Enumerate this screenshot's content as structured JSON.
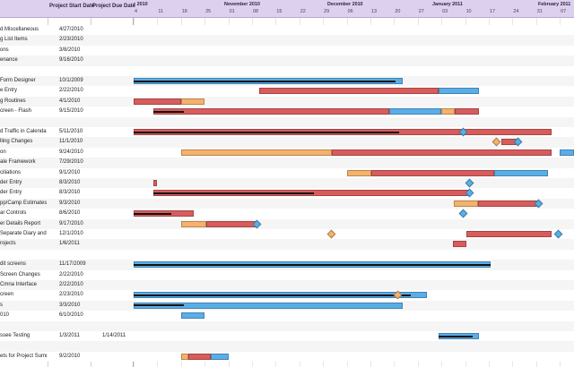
{
  "header": {
    "start_label": "Project Start Date",
    "due_label": "Project Due Date",
    "months": [
      "r 2010",
      "November 2010",
      "December 2010",
      "January 2011",
      "February 2011"
    ],
    "ticks": [
      "4",
      "11",
      "18",
      "25",
      "01",
      "08",
      "15",
      "22",
      "29",
      "06",
      "13",
      "20",
      "27",
      "03",
      "10",
      "17",
      "24",
      "31",
      "07"
    ]
  },
  "rows": [
    {
      "name": "d Miscellaneous",
      "start": "4/27/2010",
      "due": "",
      "bars": []
    },
    {
      "name": "g List Items",
      "start": "2/23/2010",
      "due": "",
      "bars": []
    },
    {
      "name": "ons",
      "start": "3/8/2010",
      "due": "",
      "bars": []
    },
    {
      "name": "enance",
      "start": "9/16/2010",
      "due": "",
      "bars": []
    },
    {
      "name": "",
      "start": "",
      "due": "",
      "bars": []
    },
    {
      "name": "Form Designer",
      "start": "10/1/2009",
      "due": "",
      "bars": [
        {
          "t": "blue",
          "a": 0,
          "b": 0.61
        }
      ],
      "line": [
        0,
        0.595
      ]
    },
    {
      "name": "e Entry",
      "start": "2/22/2010",
      "due": "",
      "bars": [
        {
          "t": "red",
          "a": 0.285,
          "b": 0.693
        },
        {
          "t": "blue",
          "a": 0.693,
          "b": 0.785
        }
      ]
    },
    {
      "name": "g Routines",
      "start": "4/1/2010",
      "due": "",
      "bars": [
        {
          "t": "red",
          "a": 0,
          "b": 0.108
        },
        {
          "t": "orange",
          "a": 0.108,
          "b": 0.16
        }
      ]
    },
    {
      "name": "creen - Flash",
      "start": "9/15/2010",
      "due": "",
      "bars": [
        {
          "t": "red",
          "a": 0.045,
          "b": 0.581
        },
        {
          "t": "blue",
          "a": 0.581,
          "b": 0.698
        },
        {
          "t": "orange",
          "a": 0.698,
          "b": 0.73
        },
        {
          "t": "red",
          "a": 0.73,
          "b": 0.785
        }
      ],
      "line": [
        0.045,
        0.115
      ]
    },
    {
      "name": "",
      "start": "",
      "due": "",
      "bars": []
    },
    {
      "name": "d Traffic in Calendar a",
      "start": "5/11/2010",
      "due": "",
      "bars": [
        {
          "t": "red",
          "a": 0,
          "b": 0.95
        }
      ],
      "line": [
        0,
        0.603
      ],
      "diamonds": [
        {
          "c": "blue",
          "p": 0.748
        }
      ]
    },
    {
      "name": "lling Changes",
      "start": "11/1/2010",
      "due": "",
      "bars": [
        {
          "t": "red",
          "a": 0.835,
          "b": 0.87
        }
      ],
      "diamonds": [
        {
          "c": "orange",
          "p": 0.824
        },
        {
          "c": "blue",
          "p": 0.873
        }
      ]
    },
    {
      "name": "on",
      "start": "9/24/2010",
      "due": "",
      "bars": [
        {
          "t": "orange",
          "a": 0.108,
          "b": 0.45
        },
        {
          "t": "red",
          "a": 0.45,
          "b": 0.95
        },
        {
          "t": "blue",
          "a": 0.968,
          "b": 1.0
        }
      ]
    },
    {
      "name": "ale Framework",
      "start": "7/29/2010",
      "due": "",
      "bars": []
    },
    {
      "name": "ciliations",
      "start": "9/1/2010",
      "due": "",
      "bars": [
        {
          "t": "orange",
          "a": 0.485,
          "b": 0.54
        },
        {
          "t": "red",
          "a": 0.54,
          "b": 0.818
        },
        {
          "t": "blue",
          "a": 0.818,
          "b": 0.94
        }
      ]
    },
    {
      "name": "der Entry",
      "start": "8/3/2010",
      "due": "",
      "bars": [
        {
          "t": "red",
          "a": 0.045,
          "b": 0.052
        }
      ],
      "diamonds": [
        {
          "c": "blue",
          "p": 0.762
        }
      ]
    },
    {
      "name": "der Entry",
      "start": "8/3/2010",
      "due": "",
      "bars": [
        {
          "t": "red",
          "a": 0.045,
          "b": 0.762
        }
      ],
      "line": [
        0.045,
        0.41
      ],
      "diamonds": [
        {
          "c": "blue",
          "p": 0.762
        }
      ]
    },
    {
      "name": "pp/Camp Estimates",
      "start": "9/3/2010",
      "due": "",
      "bars": [
        {
          "t": "orange",
          "a": 0.727,
          "b": 0.782
        },
        {
          "t": "red",
          "a": 0.782,
          "b": 0.92
        }
      ],
      "diamonds": [
        {
          "c": "blue",
          "p": 0.92
        }
      ]
    },
    {
      "name": "ar Controls",
      "start": "8/6/2010",
      "due": "",
      "bars": [
        {
          "t": "red",
          "a": 0,
          "b": 0.137
        }
      ],
      "line": [
        0,
        0.085
      ],
      "diamonds": [
        {
          "c": "blue",
          "p": 0.748
        }
      ]
    },
    {
      "name": "er Details Report",
      "start": "9/17/2010",
      "due": "",
      "bars": [
        {
          "t": "orange",
          "a": 0.108,
          "b": 0.165
        },
        {
          "t": "red",
          "a": 0.165,
          "b": 0.28
        }
      ],
      "diamonds": [
        {
          "c": "blue",
          "p": 0.28
        }
      ]
    },
    {
      "name": "Separate Diary and To",
      "start": "12/1/2010",
      "due": "",
      "bars": [
        {
          "t": "red",
          "a": 0.755,
          "b": 0.95
        }
      ],
      "diamonds": [
        {
          "c": "orange",
          "p": 0.45
        },
        {
          "c": "blue",
          "p": 0.965
        }
      ]
    },
    {
      "name": "rojects",
      "start": "1/6/2011",
      "due": "",
      "bars": [
        {
          "t": "red",
          "a": 0.725,
          "b": 0.755
        }
      ]
    },
    {
      "name": "",
      "start": "",
      "due": "",
      "bars": []
    },
    {
      "name": "dit screens",
      "start": "11/17/2009",
      "due": "",
      "bars": [
        {
          "t": "blue",
          "a": 0,
          "b": 0.81
        }
      ],
      "line": [
        0,
        0.81
      ]
    },
    {
      "name": "Screen Changes",
      "start": "2/22/2010",
      "due": "",
      "bars": []
    },
    {
      "name": "Cmna Interface",
      "start": "2/22/2010",
      "due": "",
      "bars": []
    },
    {
      "name": "creen",
      "start": "2/23/2010",
      "due": "",
      "bars": [
        {
          "t": "blue",
          "a": 0,
          "b": 0.665
        }
      ],
      "line": [
        0,
        0.63
      ],
      "diamonds": [
        {
          "c": "orange",
          "p": 0.6
        }
      ]
    },
    {
      "name": "s",
      "start": "3/3/2010",
      "due": "",
      "bars": [
        {
          "t": "blue",
          "a": 0,
          "b": 0.61
        }
      ],
      "line": [
        0,
        0.115
      ]
    },
    {
      "name": "010",
      "start": "6/10/2010",
      "due": "",
      "bars": [
        {
          "t": "blue",
          "a": 0.108,
          "b": 0.16
        }
      ]
    },
    {
      "name": "",
      "start": "",
      "due": "",
      "bars": []
    },
    {
      "name": "ssee Testing",
      "start": "1/3/2011",
      "due": "1/14/2011",
      "bars": [
        {
          "t": "blue",
          "a": 0.693,
          "b": 0.785
        }
      ],
      "line": [
        0.693,
        0.77
      ]
    },
    {
      "name": "",
      "start": "",
      "due": "",
      "bars": []
    },
    {
      "name": "ets for Project Summar",
      "start": "9/2/2010",
      "due": "",
      "bars": [
        {
          "t": "orange",
          "a": 0.108,
          "b": 0.125
        },
        {
          "t": "red",
          "a": 0.125,
          "b": 0.175
        },
        {
          "t": "blue",
          "a": 0.175,
          "b": 0.215
        }
      ]
    }
  ],
  "colors": {
    "red": "#d95c5c",
    "blue": "#5aaee8",
    "orange": "#f6b26b",
    "header": "#ddd0ee"
  }
}
